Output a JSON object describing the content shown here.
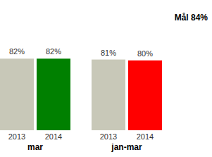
{
  "chart_data": {
    "type": "bar",
    "annotation": "Mål 84%",
    "categories": [
      "2013",
      "2014",
      "2013",
      "2014"
    ],
    "group_labels": [
      "mar",
      "jan-mar"
    ],
    "values": [
      82,
      82,
      81,
      80
    ],
    "value_labels": [
      "82%",
      "82%",
      "81%",
      "80%"
    ],
    "colors": [
      "#c8c8b8",
      "#008000",
      "#c8c8b8",
      "#ff0000"
    ],
    "ylim": [
      0,
      100
    ],
    "data_labels": true,
    "tick_labels": "x",
    "grid": false
  }
}
